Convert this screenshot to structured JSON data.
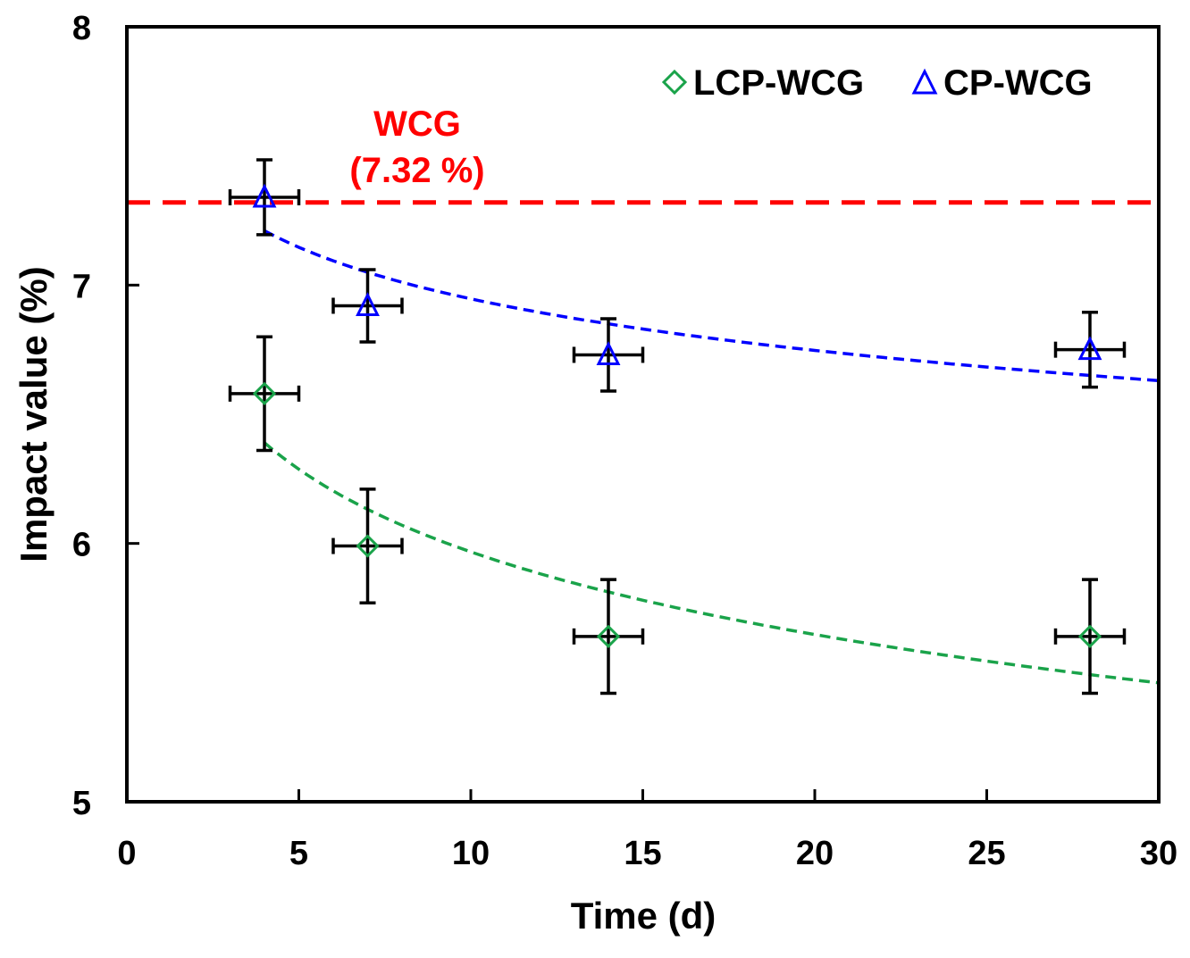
{
  "chart_data": {
    "type": "scatter",
    "title": "",
    "xlabel": "Time (d)",
    "ylabel": "Impact value (%)",
    "xlim": [
      0,
      30
    ],
    "ylim": [
      5,
      8
    ],
    "xticks": [
      "0",
      "5",
      "10",
      "15",
      "20",
      "25",
      "30"
    ],
    "yticks": [
      "5",
      "6",
      "7",
      "8"
    ],
    "grid": false,
    "legend_position": "top-right",
    "reference_line": {
      "label": "WCG",
      "value_label": "(7.32 %)",
      "value": 7.32,
      "color": "#ff0000"
    },
    "series": [
      {
        "name": "LCP-WCG",
        "marker": "diamond",
        "color": "#1aa34a",
        "x": [
          4,
          7,
          14,
          28
        ],
        "y": [
          6.58,
          5.99,
          5.64,
          5.64
        ],
        "yerr": [
          0.22,
          0.22,
          0.22,
          0.22
        ],
        "xerr": [
          1,
          1,
          1,
          1
        ],
        "trend": {
          "type": "log",
          "a": 7.03,
          "b": -0.4615,
          "color": "#1aa34a"
        }
      },
      {
        "name": "CP-WCG",
        "marker": "triangle",
        "color": "#0000ff",
        "x": [
          4,
          7,
          14,
          28
        ],
        "y": [
          7.34,
          6.92,
          6.73,
          6.75
        ],
        "yerr": [
          0.145,
          0.14,
          0.14,
          0.145
        ],
        "xerr": [
          1,
          1,
          1,
          1
        ],
        "trend": {
          "type": "log",
          "a": 7.61,
          "b": -0.288,
          "color": "#0000ff"
        }
      }
    ]
  }
}
